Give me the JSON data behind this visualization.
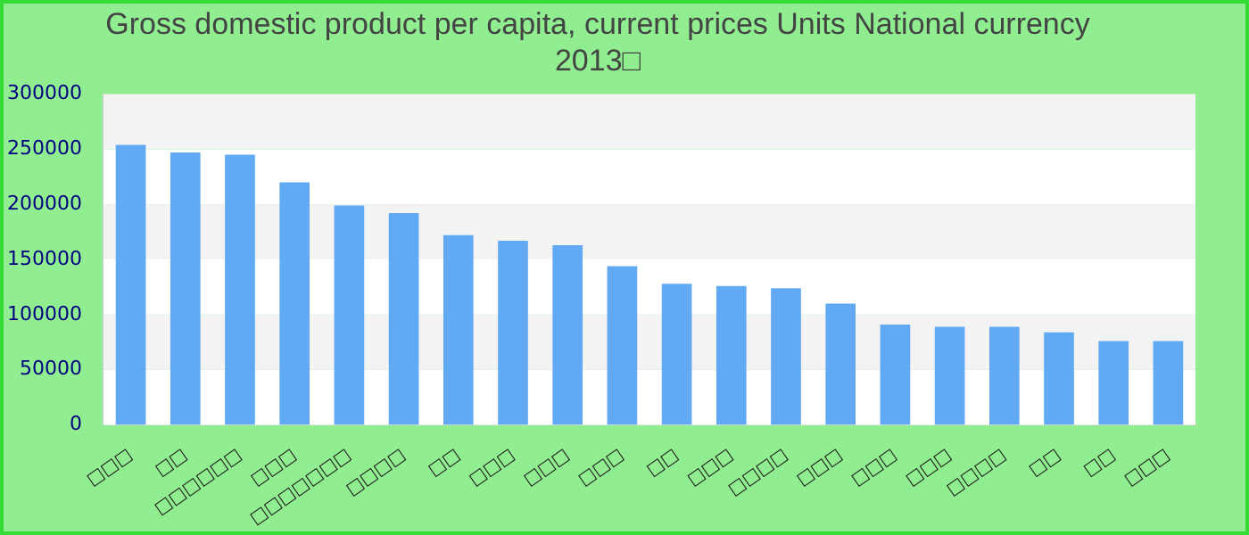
{
  "chart_data": {
    "type": "bar",
    "title": "Gross domestic product per capita, current prices Units National currency 2013□",
    "categories": [
      "□□□",
      "□□",
      "□□□□□□",
      "□□□",
      "□□□□□□□",
      "□□□□",
      "□□",
      "□□□",
      "□□□",
      "□□□",
      "□□",
      "□□□",
      "□□□□",
      "□□□",
      "□□□",
      "□□□",
      "□□□□",
      "□□",
      "□□",
      "□□□"
    ],
    "values": [
      254000,
      247000,
      245000,
      220000,
      199000,
      192000,
      172000,
      167000,
      163000,
      144000,
      128000,
      126000,
      124000,
      110000,
      91000,
      89000,
      89000,
      84000,
      76000,
      76000
    ],
    "color": "#62a9f4",
    "ylim": [
      0,
      300000
    ],
    "yticks": [
      0,
      50000,
      100000,
      150000,
      200000,
      250000,
      300000
    ]
  }
}
